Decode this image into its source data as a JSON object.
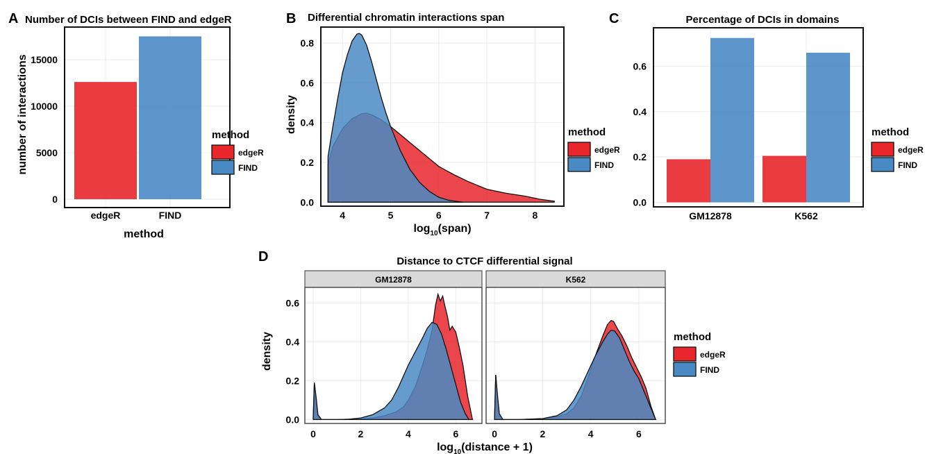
{
  "colors": {
    "edgeR": "#e8262b",
    "FIND": "#4a8ac4",
    "overlap": "#5a6596"
  },
  "legend": {
    "title": "method",
    "items": [
      "edgeR",
      "FIND"
    ]
  },
  "chart_data": [
    {
      "id": "A",
      "type": "bar",
      "panel_letter": "A",
      "title": "Number of DCIs between FIND and edgeR",
      "xlabel": "method",
      "ylabel": "number of interactions",
      "categories": [
        "edgeR",
        "FIND"
      ],
      "values": [
        12600,
        17500
      ],
      "ylim": [
        0,
        18500
      ],
      "yticks": [
        0,
        5000,
        10000,
        15000
      ],
      "grid": true,
      "legend_position": "right"
    },
    {
      "id": "B",
      "type": "area",
      "panel_letter": "B",
      "title": "Differential chromatin interactions span",
      "xlabel_main": "log",
      "xlabel_sub": "10",
      "xlabel_tail": "(span)",
      "ylabel": "density",
      "xlim": [
        3.55,
        8.6
      ],
      "ylim": [
        -0.02,
        0.88
      ],
      "xticks": [
        4,
        5,
        6,
        7,
        8
      ],
      "yticks": [
        0.0,
        0.2,
        0.4,
        0.6,
        0.8
      ],
      "grid": true,
      "legend_position": "right",
      "series": [
        {
          "name": "edgeR",
          "x": [
            3.7,
            3.8,
            4.0,
            4.2,
            4.4,
            4.5,
            4.6,
            4.8,
            5.0,
            5.2,
            5.4,
            5.6,
            5.8,
            6.0,
            6.3,
            6.6,
            7.0,
            7.4,
            7.8,
            8.1,
            8.4
          ],
          "y": [
            0.19,
            0.28,
            0.37,
            0.42,
            0.445,
            0.447,
            0.44,
            0.415,
            0.38,
            0.34,
            0.3,
            0.26,
            0.22,
            0.18,
            0.14,
            0.105,
            0.065,
            0.045,
            0.03,
            0.015,
            0.005
          ]
        },
        {
          "name": "FIND",
          "x": [
            3.7,
            3.8,
            3.9,
            4.0,
            4.1,
            4.2,
            4.3,
            4.35,
            4.4,
            4.5,
            4.6,
            4.7,
            4.8,
            4.9,
            5.0,
            5.2,
            5.4,
            5.6,
            5.8,
            6.0,
            6.2,
            6.4,
            6.5
          ],
          "y": [
            0.23,
            0.38,
            0.52,
            0.65,
            0.74,
            0.81,
            0.845,
            0.848,
            0.84,
            0.79,
            0.71,
            0.62,
            0.53,
            0.45,
            0.38,
            0.26,
            0.165,
            0.1,
            0.055,
            0.025,
            0.01,
            0.003,
            0.0
          ]
        }
      ]
    },
    {
      "id": "C",
      "type": "bar",
      "panel_letter": "C",
      "title": "Percentage of DCIs in domains",
      "xlabel": "",
      "ylabel": "",
      "categories": [
        "GM12878",
        "K562"
      ],
      "series": [
        {
          "name": "edgeR",
          "values": [
            0.19,
            0.205
          ]
        },
        {
          "name": "FIND",
          "values": [
            0.725,
            0.66
          ]
        }
      ],
      "ylim": [
        -0.02,
        0.77
      ],
      "yticks": [
        0.0,
        0.2,
        0.4,
        0.6
      ],
      "grid": true,
      "legend_position": "right"
    },
    {
      "id": "D",
      "type": "area",
      "panel_letter": "D",
      "title": "Distance to CTCF differential signal",
      "xlabel_main": "log",
      "xlabel_sub": "10",
      "xlabel_tail": "(distance + 1)",
      "ylabel": "density",
      "xlim": [
        -0.35,
        7.1
      ],
      "ylim": [
        -0.02,
        0.68
      ],
      "xticks": [
        0,
        2,
        4,
        6
      ],
      "yticks": [
        0.0,
        0.2,
        0.4,
        0.6
      ],
      "grid": true,
      "legend_position": "right",
      "facets": [
        {
          "label": "GM12878",
          "series": [
            {
              "name": "edgeR",
              "x": [
                0,
                0.05,
                0.12,
                0.2,
                0.35,
                0.5,
                1.0,
                2.0,
                2.5,
                3.0,
                3.5,
                3.8,
                4.0,
                4.3,
                4.6,
                4.8,
                5.0,
                5.15,
                5.25,
                5.35,
                5.45,
                5.55,
                5.65,
                5.75,
                5.85,
                6.0,
                6.15,
                6.3,
                6.5,
                6.7
              ],
              "y": [
                0.0,
                0.19,
                0.1,
                0.02,
                0.0,
                0.0,
                0.0,
                0.003,
                0.008,
                0.02,
                0.04,
                0.065,
                0.1,
                0.17,
                0.28,
                0.36,
                0.46,
                0.59,
                0.645,
                0.61,
                0.635,
                0.58,
                0.53,
                0.46,
                0.48,
                0.45,
                0.37,
                0.28,
                0.12,
                0.0
              ]
            },
            {
              "name": "FIND",
              "x": [
                0,
                0.05,
                0.12,
                0.2,
                0.35,
                0.5,
                1.0,
                1.5,
                2.0,
                2.5,
                3.0,
                3.3,
                3.6,
                4.0,
                4.3,
                4.6,
                4.8,
                5.0,
                5.2,
                5.4,
                5.6,
                5.8,
                6.0,
                6.2,
                6.4,
                6.55
              ],
              "y": [
                0.0,
                0.19,
                0.12,
                0.025,
                0.0,
                0.0,
                0.0,
                0.002,
                0.008,
                0.025,
                0.06,
                0.1,
                0.17,
                0.28,
                0.35,
                0.42,
                0.47,
                0.5,
                0.49,
                0.44,
                0.36,
                0.27,
                0.18,
                0.09,
                0.03,
                0.0
              ]
            }
          ]
        },
        {
          "label": "K562",
          "series": [
            {
              "name": "edgeR",
              "x": [
                0,
                0.05,
                0.12,
                0.2,
                0.35,
                0.5,
                1.0,
                2.0,
                2.6,
                3.0,
                3.3,
                3.6,
                3.9,
                4.2,
                4.5,
                4.7,
                4.85,
                4.95,
                5.1,
                5.3,
                5.5,
                5.7,
                5.9,
                6.1,
                6.3,
                6.5,
                6.7
              ],
              "y": [
                0.0,
                0.23,
                0.12,
                0.02,
                0.0,
                0.0,
                0.0,
                0.004,
                0.015,
                0.03,
                0.06,
                0.12,
                0.22,
                0.33,
                0.43,
                0.49,
                0.51,
                0.505,
                0.47,
                0.43,
                0.38,
                0.32,
                0.27,
                0.22,
                0.16,
                0.07,
                0.0
              ]
            },
            {
              "name": "FIND",
              "x": [
                0,
                0.05,
                0.12,
                0.2,
                0.35,
                0.5,
                1.0,
                2.0,
                2.6,
                3.0,
                3.3,
                3.6,
                3.9,
                4.2,
                4.5,
                4.7,
                4.85,
                5.0,
                5.2,
                5.4,
                5.6,
                5.8,
                6.0,
                6.2,
                6.4,
                6.6,
                6.7
              ],
              "y": [
                0.0,
                0.23,
                0.13,
                0.03,
                0.0,
                0.0,
                0.0,
                0.005,
                0.02,
                0.05,
                0.1,
                0.17,
                0.25,
                0.33,
                0.4,
                0.44,
                0.46,
                0.455,
                0.42,
                0.36,
                0.3,
                0.25,
                0.21,
                0.15,
                0.09,
                0.03,
                0.0
              ]
            }
          ]
        }
      ]
    }
  ]
}
